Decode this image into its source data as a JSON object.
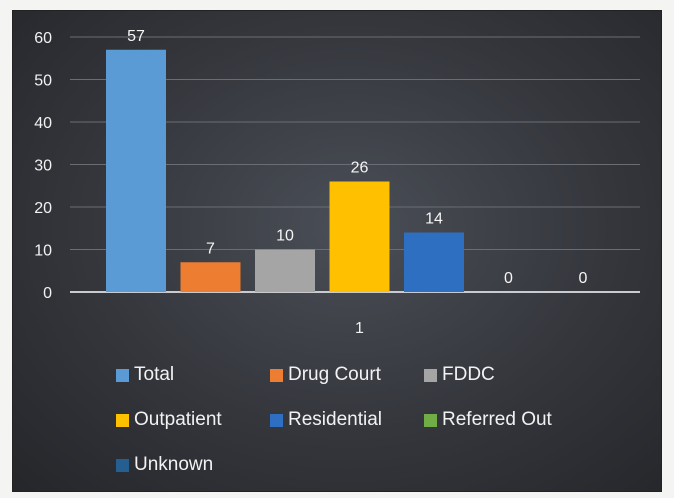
{
  "chart_data": {
    "type": "bar",
    "categories": [
      "1"
    ],
    "series": [
      {
        "name": "Total",
        "values": [
          57
        ],
        "color": "#5b9bd5"
      },
      {
        "name": "Drug Court",
        "values": [
          7
        ],
        "color": "#ed7d31"
      },
      {
        "name": "FDDC",
        "values": [
          10
        ],
        "color": "#a5a5a5"
      },
      {
        "name": "Outpatient",
        "values": [
          26
        ],
        "color": "#ffc000"
      },
      {
        "name": "Residential",
        "values": [
          14
        ],
        "color": "#2e6fc2"
      },
      {
        "name": "Referred Out",
        "values": [
          0
        ],
        "color": "#70ad47"
      },
      {
        "name": "Unknown",
        "values": [
          0
        ],
        "color": "#255e91"
      }
    ],
    "ylim": [
      0,
      60
    ],
    "yticks": [
      "0",
      "10",
      "20",
      "30",
      "40",
      "50",
      "60"
    ],
    "data_labels": [
      "57",
      "7",
      "10",
      "26",
      "14",
      "0",
      "0"
    ],
    "title": "",
    "xlabel": "",
    "ylabel": "",
    "grid": true,
    "legend_position": "bottom"
  }
}
